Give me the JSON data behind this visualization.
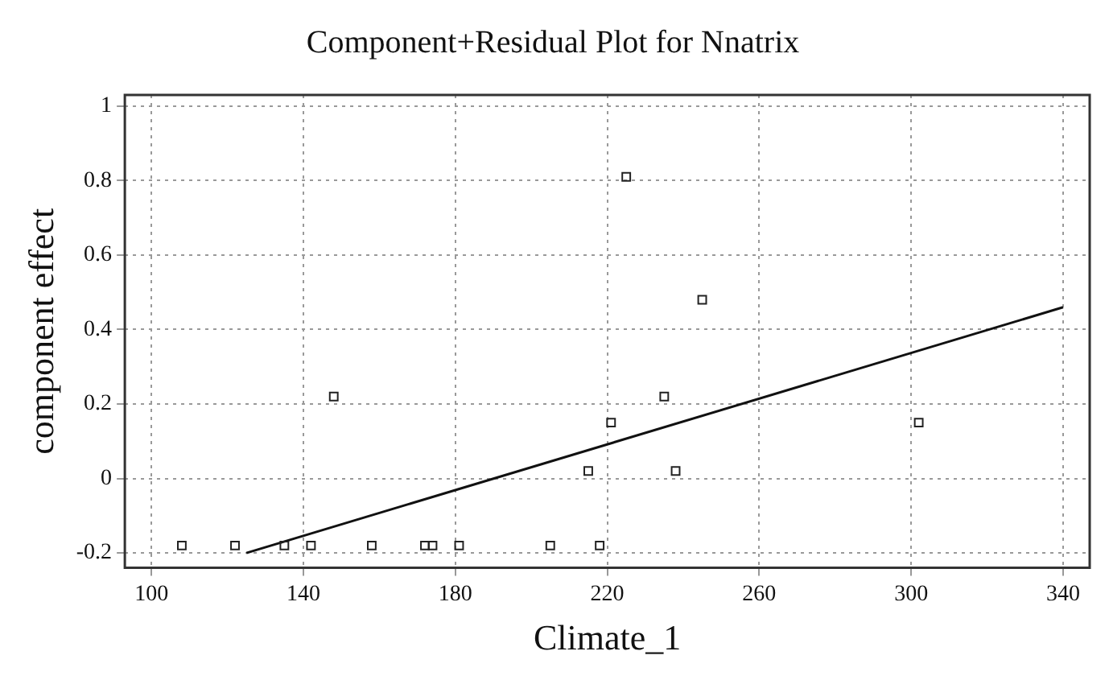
{
  "chart_data": {
    "type": "scatter",
    "title": "Component+Residual Plot for Nnatrix",
    "xlabel": "Climate_1",
    "ylabel": "component effect",
    "xlim": [
      93,
      347
    ],
    "xticks": [
      100,
      140,
      180,
      220,
      260,
      300,
      340
    ],
    "ylim": [
      -0.24,
      1.03
    ],
    "yticks": [
      -0.2,
      0,
      0.2,
      0.4,
      0.6,
      0.8,
      1
    ],
    "grid": true,
    "marker": "square",
    "legend": false,
    "series": [
      {
        "color": "#222222",
        "x": [
          108,
          122,
          135,
          142,
          148,
          158,
          172,
          174,
          181,
          205,
          218,
          215,
          221,
          225,
          235,
          238,
          245,
          302
        ],
        "values": [
          -0.18,
          -0.18,
          -0.18,
          -0.18,
          0.22,
          -0.18,
          -0.18,
          -0.18,
          -0.18,
          -0.18,
          -0.18,
          0.02,
          0.15,
          0.81,
          0.22,
          0.02,
          0.48,
          0.15
        ]
      },
      {
        "type": "line",
        "color": "#111111",
        "x": [
          125,
          340
        ],
        "values": [
          -0.2,
          0.46
        ],
        "marker": "none"
      }
    ]
  }
}
